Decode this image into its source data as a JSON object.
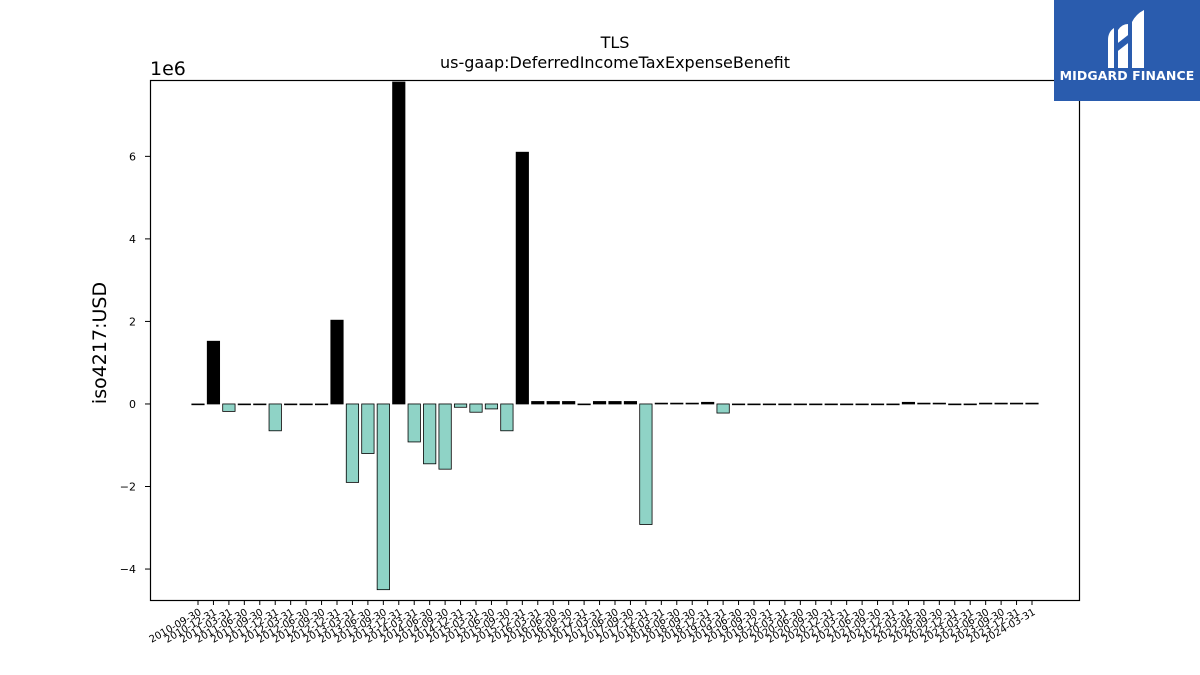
{
  "logo": {
    "brand": "MIDGARD FINANCE",
    "icon": "midgard-logo-icon"
  },
  "chart_data": {
    "type": "bar",
    "title": "TLS",
    "subtitle": "us-gaap:DeferredIncomeTaxExpenseBenefit",
    "ylabel": "iso4217:USD",
    "xlabel": "",
    "y_offset_label": "1e6",
    "ylim": [
      -4.75,
      7.85
    ],
    "yticks": [
      -4,
      -2,
      0,
      2,
      4,
      6
    ],
    "grid": false,
    "legend": "none",
    "colors": {
      "positive": "#000000",
      "negative": "#8fd3c6",
      "edge": "#000000"
    },
    "categories": [
      "2010-09-30",
      "2010-12-31",
      "2011-03-31",
      "2011-06-30",
      "2011-09-30",
      "2011-12-31",
      "2012-03-31",
      "2012-06-30",
      "2012-09-30",
      "2012-12-31",
      "2013-03-31",
      "2013-06-30",
      "2013-09-30",
      "2013-12-31",
      "2014-03-31",
      "2014-06-30",
      "2014-09-30",
      "2014-12-31",
      "2015-03-31",
      "2015-06-30",
      "2015-09-30",
      "2015-12-31",
      "2016-03-31",
      "2016-06-30",
      "2016-09-30",
      "2016-12-31",
      "2017-03-31",
      "2017-06-30",
      "2017-09-30",
      "2017-12-31",
      "2018-03-31",
      "2018-06-30",
      "2018-09-30",
      "2018-12-31",
      "2019-03-31",
      "2019-06-30",
      "2019-09-30",
      "2019-12-31",
      "2020-03-31",
      "2020-06-30",
      "2020-09-30",
      "2020-12-31",
      "2021-03-31",
      "2021-06-30",
      "2021-09-30",
      "2021-12-31",
      "2022-03-31",
      "2022-06-30",
      "2022-09-30",
      "2022-12-31",
      "2023-03-31",
      "2023-06-30",
      "2023-09-30",
      "2023-12-31",
      "2024-03-31"
    ],
    "values": [
      0.0,
      1.52,
      -0.18,
      0.0,
      0.0,
      -0.65,
      0.0,
      0.0,
      0.0,
      2.03,
      -1.9,
      -1.2,
      -4.5,
      7.8,
      -0.92,
      -1.45,
      -1.58,
      -0.08,
      -0.2,
      -0.12,
      -0.65,
      6.1,
      0.06,
      0.06,
      0.06,
      0.0,
      0.06,
      0.06,
      0.06,
      -2.92,
      0.02,
      0.02,
      0.02,
      0.04,
      -0.22,
      0.0,
      0.0,
      0.0,
      0.0,
      0.0,
      0.0,
      0.0,
      0.0,
      0.0,
      0.0,
      0.0,
      0.04,
      0.02,
      0.02,
      0.0,
      0.0,
      0.02,
      0.02,
      0.02,
      0.02
    ]
  }
}
